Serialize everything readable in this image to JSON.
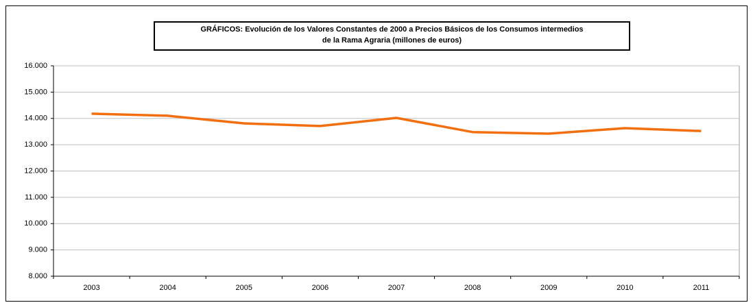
{
  "chart_data": {
    "type": "line",
    "title": "GRÁFICOS: Evolución de los Valores Constantes de 2000 a Precios Básicos de los Consumos intermedios\nde la Rama Agraria  (millones de euros)",
    "categories": [
      "2003",
      "2004",
      "2005",
      "2006",
      "2007",
      "2008",
      "2009",
      "2010",
      "2011"
    ],
    "series": [
      {
        "color": "#f26f0f",
        "values": [
          14180,
          14100,
          13810,
          13710,
          14020,
          13480,
          13420,
          13630,
          13520
        ]
      }
    ],
    "ylim": [
      8000,
      16000
    ],
    "yticks": [
      {
        "value": 8000,
        "label": "8.000"
      },
      {
        "value": 9000,
        "label": "9.000"
      },
      {
        "value": 10000,
        "label": "10.000"
      },
      {
        "value": 11000,
        "label": "11.000"
      },
      {
        "value": 12000,
        "label": "12.000"
      },
      {
        "value": 13000,
        "label": "13.000"
      },
      {
        "value": 14000,
        "label": "14.000"
      },
      {
        "value": 15000,
        "label": "15.000"
      },
      {
        "value": 16000,
        "label": "16.000"
      }
    ],
    "grid": true
  }
}
